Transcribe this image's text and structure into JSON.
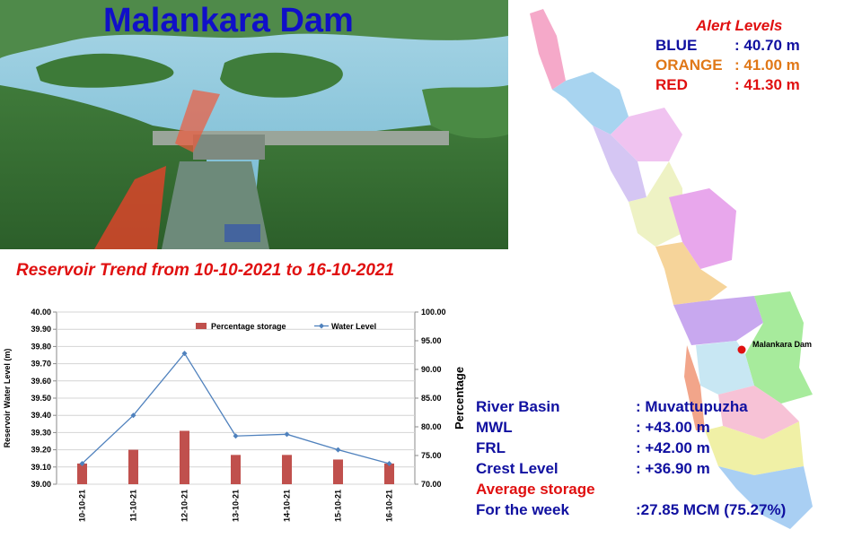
{
  "title": "Malankara Dam",
  "trend_title": "Reservoir Trend from 10-10-2021 to 16-10-2021",
  "alert": {
    "title": "Alert Levels",
    "levels": [
      {
        "name": "BLUE",
        "value": ": 40.70 m",
        "color": "#1010a0"
      },
      {
        "name": "ORANGE",
        "value": ": 41.00 m",
        "color": "#e07818"
      },
      {
        "name": "RED",
        "value": ": 41.30 m",
        "color": "#e01010"
      }
    ]
  },
  "map": {
    "marker_label": "Malankara Dam",
    "marker_color": "#e01010"
  },
  "info": {
    "river_basin_label": "River Basin",
    "river_basin_value": ": Muvattupuzha",
    "mwl_label": "MWL",
    "mwl_value": ": +43.00 m",
    "frl_label": "FRL",
    "frl_value": ": +42.00 m",
    "crest_label": "Crest Level",
    "crest_value": ": +36.90 m",
    "avg_label": "Average storage",
    "week_label": "For the week",
    "week_value": ":27.85 MCM (75.27%)"
  },
  "chart_data": {
    "type": "bar",
    "categories": [
      "10-10-21",
      "11-10-21",
      "12-10-21",
      "13-10-21",
      "14-10-21",
      "15-10-21",
      "16-10-21"
    ],
    "ylabel_left": "Reservoir Water Level (m)",
    "ylabel_right": "Percentage",
    "ylim_left": [
      39.0,
      40.0
    ],
    "ylim_right": [
      70.0,
      100.0
    ],
    "yticks_left": [
      "39.00",
      "39.10",
      "39.20",
      "39.30",
      "39.40",
      "39.50",
      "39.60",
      "39.70",
      "39.80",
      "39.90",
      "40.00"
    ],
    "yticks_right": [
      "70.00",
      "75.00",
      "80.00",
      "85.00",
      "90.00",
      "95.00",
      "100.00"
    ],
    "legend_position": "top",
    "series": [
      {
        "name": "Percentage storage",
        "type": "bar",
        "axis": "right",
        "color": "#c0504d",
        "values": [
          73.6,
          76.0,
          79.3,
          75.1,
          75.1,
          74.3,
          73.6
        ]
      },
      {
        "name": "Water Level",
        "type": "line",
        "axis": "left",
        "color": "#4f81bd",
        "values": [
          39.12,
          39.4,
          39.76,
          39.28,
          39.29,
          39.2,
          39.12
        ]
      }
    ]
  }
}
